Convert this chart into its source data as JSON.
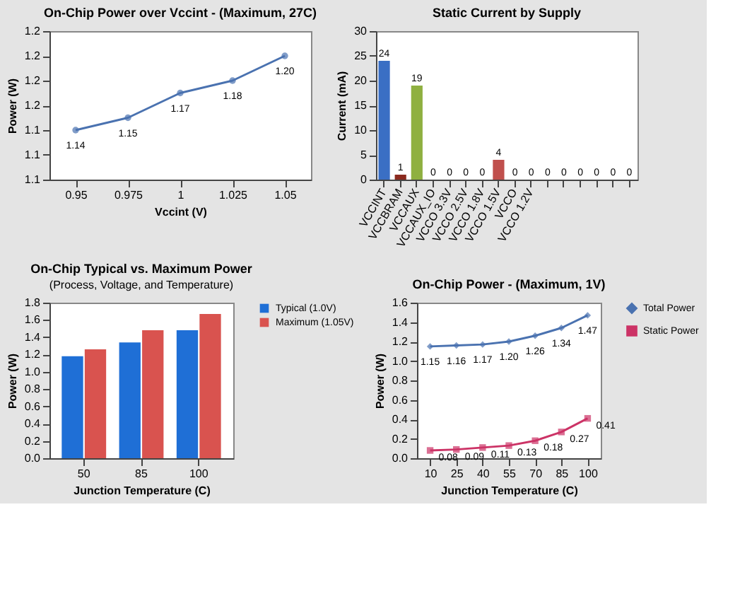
{
  "chart_data": [
    {
      "type": "line",
      "title": "On-Chip Power over Vccint - (Maximum, 27C)",
      "xlabel": "Vccint (V)",
      "ylabel": "Power (W)",
      "categories": [
        "0.95",
        "0.975",
        "1",
        "1.025",
        "1.05"
      ],
      "values": [
        1.14,
        1.15,
        1.17,
        1.18,
        1.2
      ],
      "value_labels": [
        "1.14",
        "1.15",
        "1.17",
        "1.18",
        "1.20"
      ],
      "color": "#4a72b0",
      "marker": "circle",
      "ylim": [
        1.1,
        1.22
      ],
      "yticks": [
        {
          "value": 1.1,
          "label": "1.1"
        },
        {
          "value": 1.12,
          "label": "1.1"
        },
        {
          "value": 1.14,
          "label": "1.1"
        },
        {
          "value": 1.16,
          "label": "1.2"
        },
        {
          "value": 1.18,
          "label": "1.2"
        },
        {
          "value": 1.2,
          "label": "1.2"
        },
        {
          "value": 1.22,
          "label": "1.2"
        }
      ]
    },
    {
      "type": "bar",
      "title": "Static Current by Supply",
      "ylabel": "Current (mA)",
      "categories": [
        "VCCINT",
        "VCCBRAM",
        "VCCAUX",
        "VCCAUX_IO",
        "VCCO 3.3V",
        "VCCO 2.5V",
        "VCCO 1.8V",
        "VCCO 1.5V",
        "VCCO",
        "VCCO 1.2V",
        null,
        null,
        null,
        null,
        null,
        null
      ],
      "values": [
        24,
        1,
        19,
        0,
        0,
        0,
        0,
        4,
        0,
        0,
        0,
        0,
        0,
        0,
        0,
        0
      ],
      "colors": [
        "#3a6fc4",
        "#8b2a1f",
        "#8fb040",
        "#4f81bd",
        "#4f81bd",
        "#4f81bd",
        "#4f81bd",
        "#c0504d",
        "#4f81bd",
        "#4f81bd",
        "#4f81bd",
        "#4f81bd",
        "#4f81bd",
        "#4f81bd",
        "#4f81bd",
        "#4f81bd"
      ],
      "data_labels": true,
      "ylim": [
        0,
        30
      ],
      "yticks": [
        0,
        5,
        10,
        15,
        20,
        25,
        30
      ]
    },
    {
      "type": "bar",
      "title": "On-Chip Typical vs. Maximum Power",
      "subtitle": "(Process, Voltage, and Temperature)",
      "xlabel": "Junction Temperature (C)",
      "ylabel": "Power (W)",
      "categories": [
        "50",
        "85",
        "100"
      ],
      "legend": "top right",
      "series": [
        {
          "name": "Typical (1.0V)",
          "color": "#1f6fd6",
          "values": [
            1.18,
            1.34,
            1.48
          ]
        },
        {
          "name": "Maximum (1.05V)",
          "color": "#d9534f",
          "values": [
            1.26,
            1.48,
            1.67
          ]
        }
      ],
      "ylim": [
        0,
        1.8
      ],
      "yticks": [
        {
          "value": 0,
          "label": "0.0"
        },
        {
          "value": 0.2,
          "label": "0.2"
        },
        {
          "value": 0.4,
          "label": "0.4"
        },
        {
          "value": 0.6,
          "label": "0.6"
        },
        {
          "value": 0.8,
          "label": "0.8"
        },
        {
          "value": 1.0,
          "label": "1.0"
        },
        {
          "value": 1.2,
          "label": "1.2"
        },
        {
          "value": 1.4,
          "label": "1.4"
        },
        {
          "value": 1.6,
          "label": "1.6"
        },
        {
          "value": 1.8,
          "label": "1.8"
        }
      ]
    },
    {
      "type": "line",
      "title": "On-Chip Power - (Maximum, 1V)",
      "xlabel": "Junction Temperature (C)",
      "ylabel": "Power (W)",
      "categories": [
        "10",
        "25",
        "40",
        "55",
        "70",
        "85",
        "100"
      ],
      "legend": "top right",
      "series": [
        {
          "name": "Total Power",
          "color": "#4a72b0",
          "marker": "diamond",
          "values": [
            1.15,
            1.16,
            1.17,
            1.2,
            1.26,
            1.34,
            1.47
          ],
          "value_labels": [
            "1.15",
            "1.16",
            "1.17",
            "1.20",
            "1.26",
            "1.34",
            "1.47"
          ]
        },
        {
          "name": "Static Power",
          "color": "#cc3366",
          "marker": "square",
          "values": [
            0.08,
            0.09,
            0.11,
            0.13,
            0.18,
            0.27,
            0.41
          ],
          "value_labels": [
            "0.08",
            "0.09",
            "0.11",
            "0.13",
            "0.18",
            "0.27",
            "0.41"
          ]
        }
      ],
      "ylim": [
        0,
        1.6
      ],
      "yticks": [
        {
          "value": 0,
          "label": "0.0"
        },
        {
          "value": 0.2,
          "label": "0.2"
        },
        {
          "value": 0.4,
          "label": "0.4"
        },
        {
          "value": 0.6,
          "label": "0.6"
        },
        {
          "value": 0.8,
          "label": "0.8"
        },
        {
          "value": 1.0,
          "label": "1.0"
        },
        {
          "value": 1.2,
          "label": "1.2"
        },
        {
          "value": 1.4,
          "label": "1.4"
        },
        {
          "value": 1.6,
          "label": "1.6"
        }
      ]
    }
  ]
}
